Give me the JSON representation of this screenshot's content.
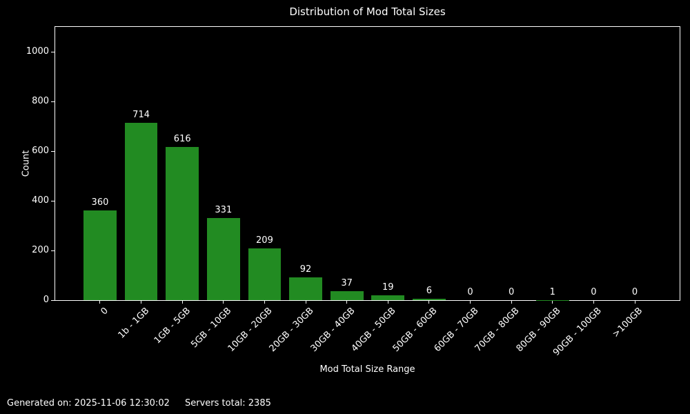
{
  "footer": {
    "generated": "Generated on: 2025-11-06 12:30:02",
    "servers": "Servers total: 2385"
  },
  "chart_data": {
    "type": "bar",
    "title": "Distribution of Mod Total Sizes",
    "xlabel": "Mod Total Size Range",
    "ylabel": "Count",
    "categories": [
      "0",
      "1b - 1GB",
      "1GB - 5GB",
      "5GB - 10GB",
      "10GB - 20GB",
      "20GB - 30GB",
      "30GB - 40GB",
      "40GB - 50GB",
      "50GB - 60GB",
      "60GB - 70GB",
      "70GB - 80GB",
      "80GB - 90GB",
      "90GB - 100GB",
      ">100GB"
    ],
    "values": [
      360,
      714,
      616,
      331,
      209,
      92,
      37,
      19,
      6,
      0,
      0,
      1,
      0,
      0
    ],
    "yticks": [
      0,
      200,
      400,
      600,
      800,
      1000
    ],
    "ylim": [
      0,
      1100
    ],
    "grid": false,
    "legend": "none",
    "bar_color": "#228b22",
    "background_color": "#000000",
    "text_color": "#ffffff"
  }
}
